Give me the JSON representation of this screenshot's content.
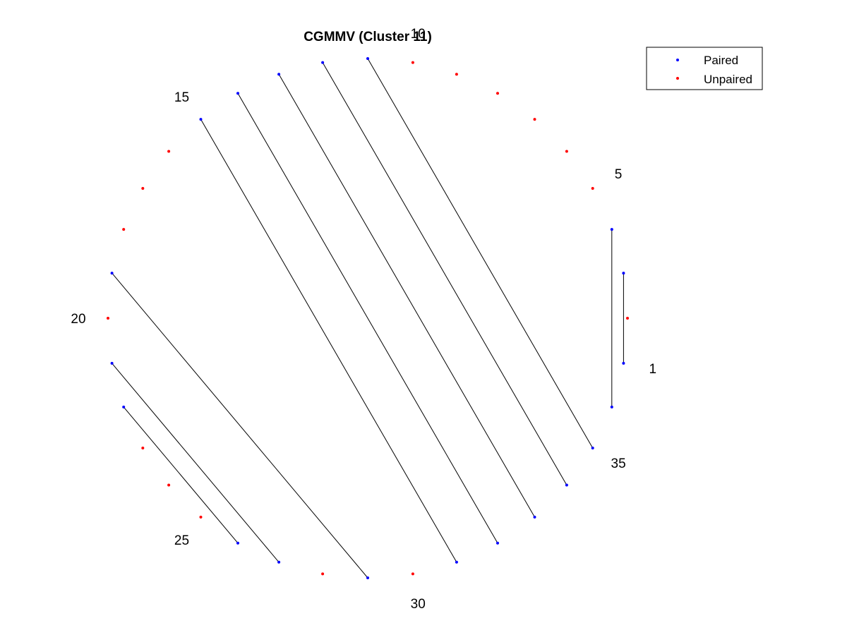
{
  "chart_data": {
    "type": "scatter",
    "title": "CGMMV (Cluster 11)",
    "n_positions": 36,
    "position_labels": [
      1,
      5,
      10,
      15,
      20,
      25,
      30,
      35
    ],
    "paired_positions": [
      1,
      3,
      4,
      11,
      12,
      13,
      14,
      15,
      19,
      21,
      22,
      26,
      27,
      29,
      31,
      32,
      33,
      34,
      35,
      36
    ],
    "unpaired_positions": [
      2,
      5,
      6,
      7,
      8,
      9,
      10,
      16,
      17,
      18,
      20,
      23,
      24,
      25,
      28,
      30
    ],
    "pairs": [
      [
        1,
        3
      ],
      [
        36,
        4
      ],
      [
        35,
        11
      ],
      [
        34,
        12
      ],
      [
        33,
        13
      ],
      [
        32,
        14
      ],
      [
        31,
        15
      ],
      [
        29,
        19
      ],
      [
        27,
        21
      ],
      [
        26,
        22
      ]
    ],
    "legend": {
      "position": "top-right",
      "entries": [
        {
          "label": "Paired",
          "color": "#0000ff"
        },
        {
          "label": "Unpaired",
          "color": "#ff0000"
        }
      ]
    },
    "colors": {
      "paired": "#0000ff",
      "unpaired": "#ff0000",
      "link": "#000000"
    }
  }
}
